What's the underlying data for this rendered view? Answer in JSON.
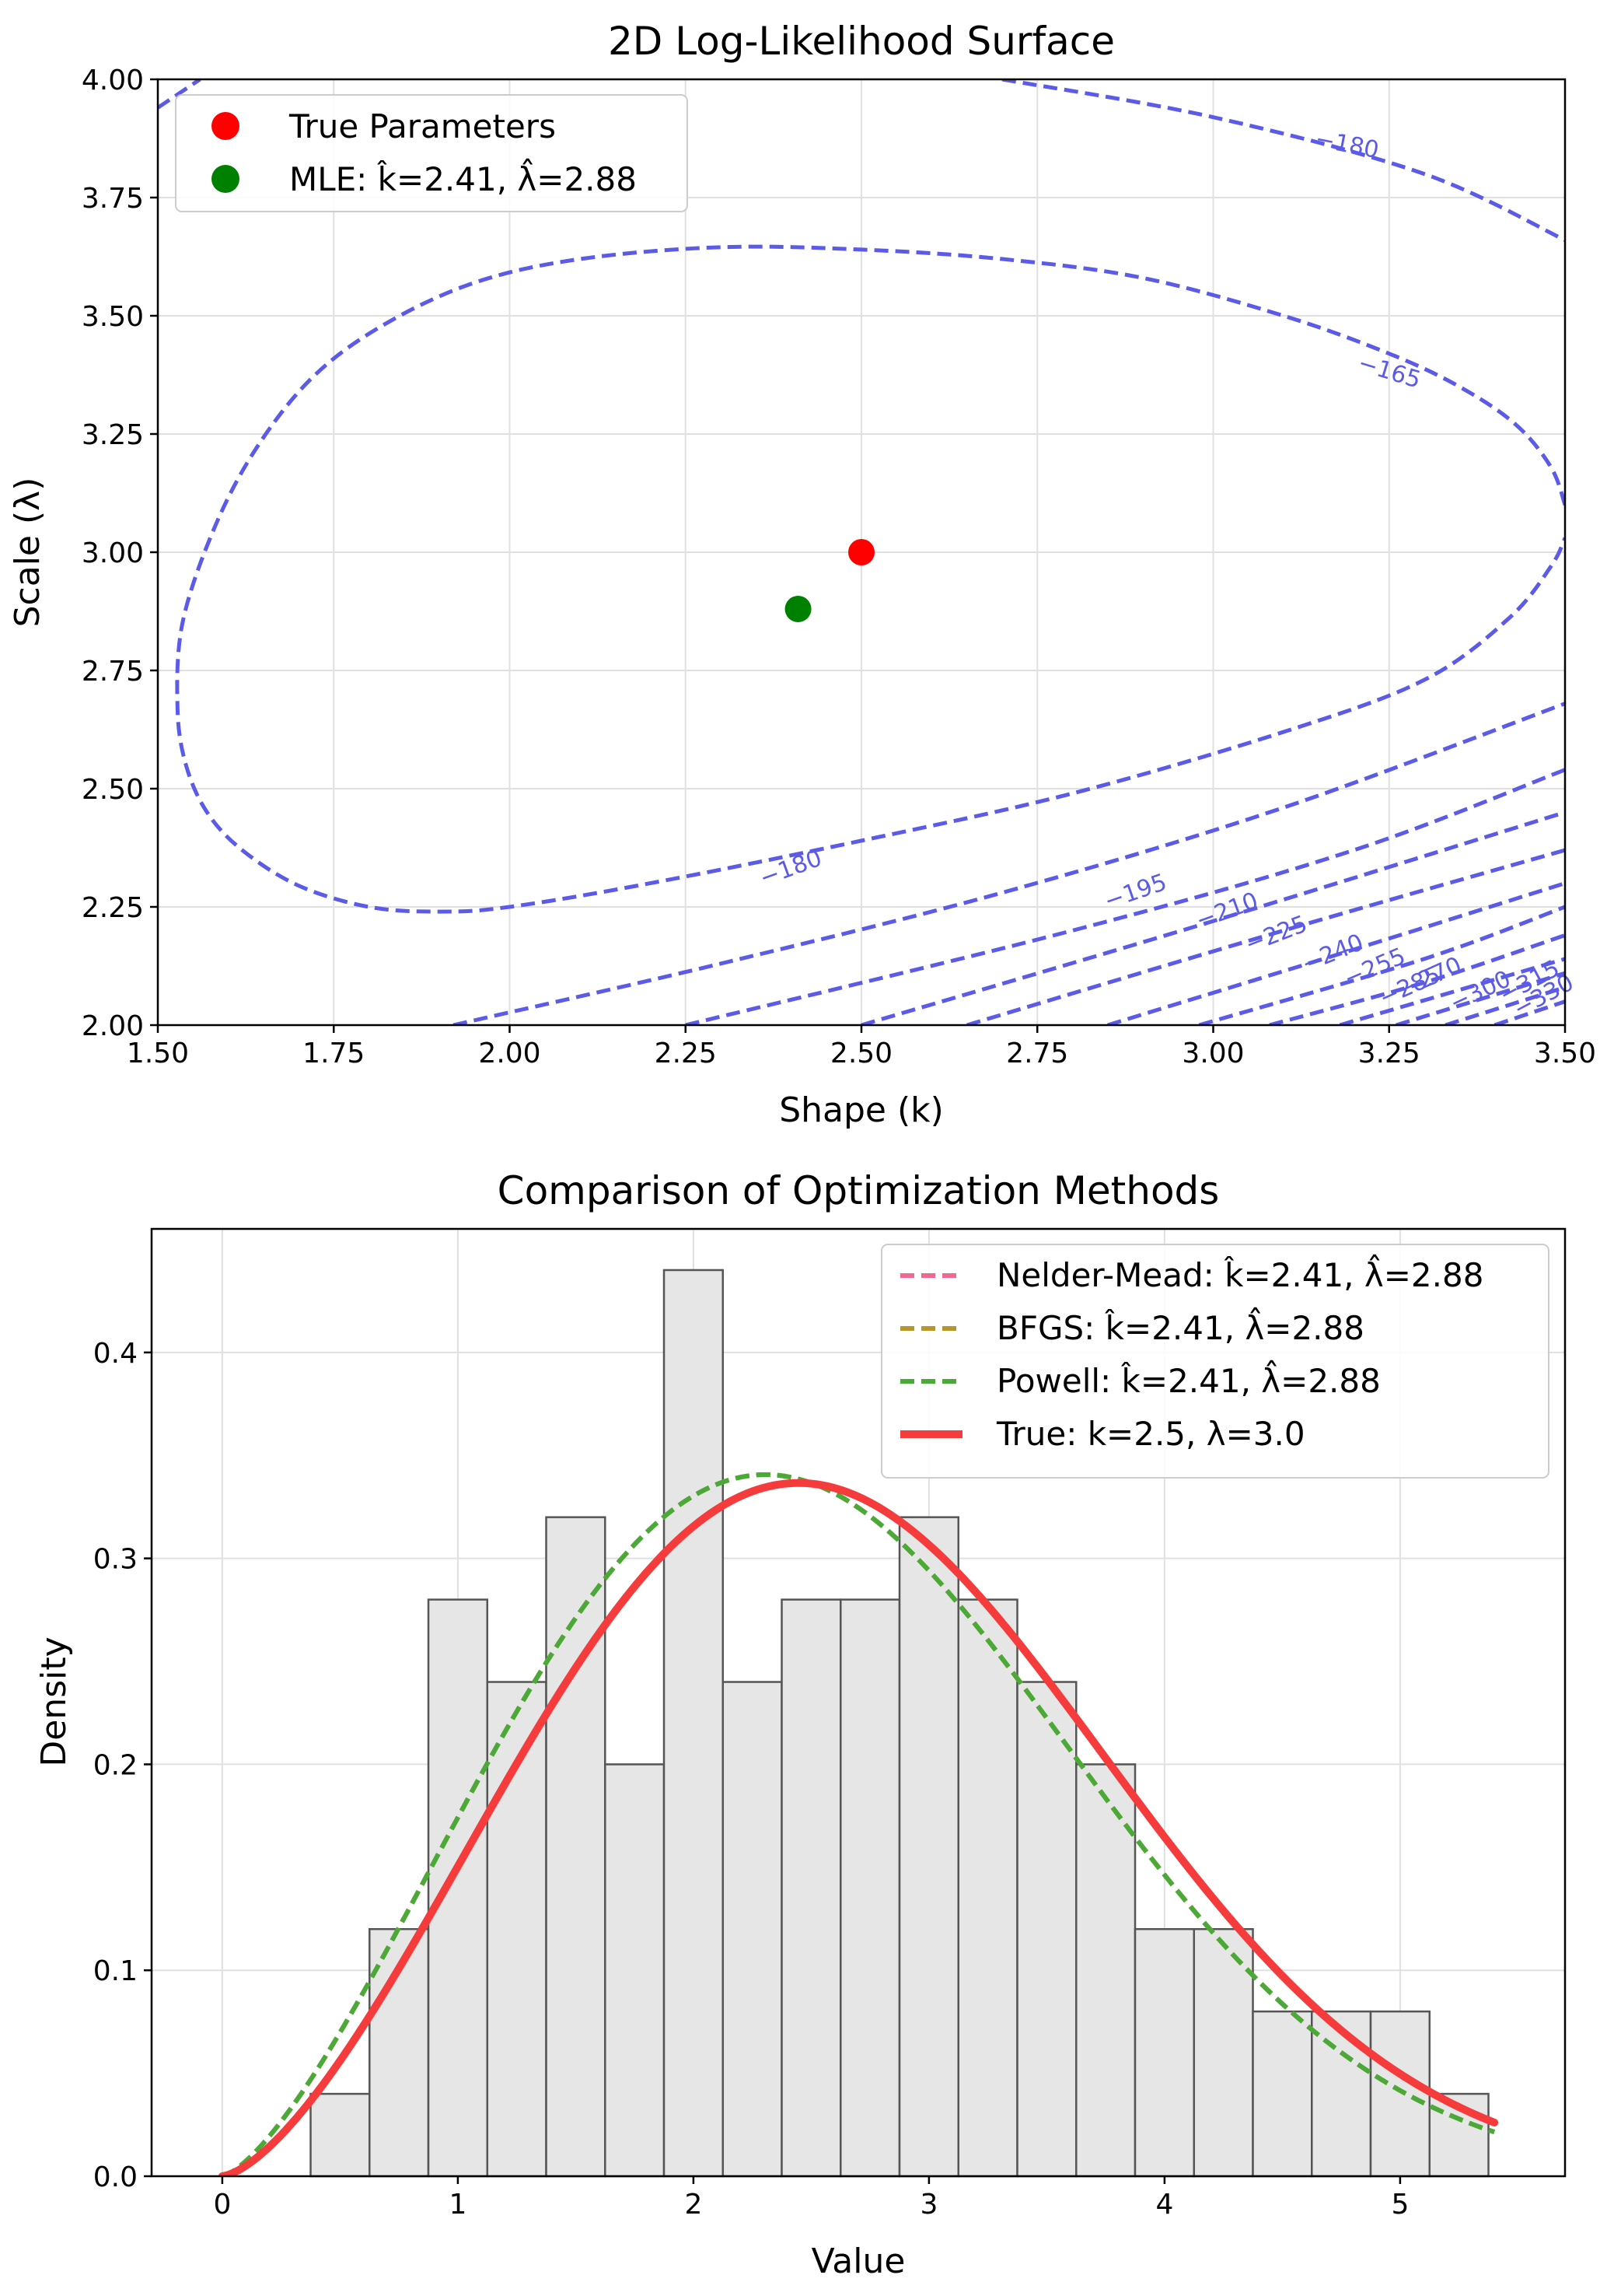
{
  "chart_data": [
    {
      "type": "contour",
      "title": "2D Log-Likelihood Surface",
      "xlabel": "Shape (k)",
      "ylabel": "Scale (λ)",
      "xlim": [
        1.5,
        3.5
      ],
      "ylim": [
        2.0,
        4.0
      ],
      "xticks": [
        1.5,
        1.75,
        2.0,
        2.25,
        2.5,
        2.75,
        3.0,
        3.25,
        3.5
      ],
      "xtick_labels": [
        "1.50",
        "1.75",
        "2.00",
        "2.25",
        "2.50",
        "2.75",
        "3.00",
        "3.25",
        "3.50"
      ],
      "yticks": [
        2.0,
        2.25,
        2.5,
        2.75,
        3.0,
        3.25,
        3.5,
        3.75,
        4.0
      ],
      "ytick_labels": [
        "2.00",
        "2.25",
        "2.50",
        "2.75",
        "3.00",
        "3.25",
        "3.50",
        "3.75",
        "4.00"
      ],
      "grid": true,
      "contour_color": "#5b5be8",
      "contours": [
        {
          "level": -165,
          "label": "−165",
          "points": [
            [
              3.5,
              3.1
            ],
            [
              3.48,
              3.18
            ],
            [
              3.43,
              3.27
            ],
            [
              3.35,
              3.35
            ],
            [
              3.25,
              3.42
            ],
            [
              3.1,
              3.5
            ],
            [
              2.9,
              3.58
            ],
            [
              2.7,
              3.62
            ],
            [
              2.5,
              3.64
            ],
            [
              2.3,
              3.645
            ],
            [
              2.1,
              3.62
            ],
            [
              1.95,
              3.57
            ],
            [
              1.82,
              3.48
            ],
            [
              1.72,
              3.37
            ],
            [
              1.64,
              3.22
            ],
            [
              1.58,
              3.05
            ],
            [
              1.535,
              2.85
            ],
            [
              1.528,
              2.67
            ],
            [
              1.54,
              2.55
            ],
            [
              1.57,
              2.45
            ],
            [
              1.62,
              2.37
            ],
            [
              1.7,
              2.295
            ],
            [
              1.8,
              2.25
            ],
            [
              1.9,
              2.24
            ],
            [
              2.0,
              2.25
            ],
            [
              2.2,
              2.3
            ],
            [
              2.5,
              2.39
            ],
            [
              2.8,
              2.49
            ],
            [
              3.1,
              2.62
            ],
            [
              3.3,
              2.73
            ],
            [
              3.42,
              2.86
            ],
            [
              3.48,
              2.97
            ],
            [
              3.5,
              3.03
            ]
          ]
        },
        {
          "level": -180,
          "label": "−180",
          "points": [
            [
              1.5,
              3.94
            ],
            [
              1.56,
              4.0
            ]
          ]
        },
        {
          "level": -180,
          "label": "−180",
          "points": [
            [
              2.7,
              4.0
            ],
            [
              3.0,
              3.92
            ],
            [
              3.3,
              3.8
            ],
            [
              3.5,
              3.66
            ]
          ]
        },
        {
          "level": -180,
          "label": "−180",
          "points": [
            [
              1.92,
              2.0
            ],
            [
              2.3,
              2.13
            ],
            [
              2.7,
              2.28
            ],
            [
              3.1,
              2.46
            ],
            [
              3.5,
              2.68
            ]
          ]
        },
        {
          "level": -195,
          "label": "−195",
          "points": [
            [
              2.25,
              2.0
            ],
            [
              2.8,
              2.2
            ],
            [
              3.2,
              2.37
            ],
            [
              3.5,
              2.54
            ]
          ]
        },
        {
          "level": -210,
          "label": "−210",
          "points": [
            [
              2.5,
              2.0
            ],
            [
              3.0,
              2.22
            ],
            [
              3.5,
              2.45
            ]
          ]
        },
        {
          "level": -225,
          "label": "−225",
          "points": [
            [
              2.65,
              2.0
            ],
            [
              3.1,
              2.2
            ],
            [
              3.5,
              2.37
            ]
          ]
        },
        {
          "level": -240,
          "label": "−240",
          "points": [
            [
              2.85,
              2.0
            ],
            [
              3.2,
              2.16
            ],
            [
              3.5,
              2.3
            ]
          ]
        },
        {
          "level": -255,
          "label": "−255",
          "points": [
            [
              2.98,
              2.0
            ],
            [
              3.3,
              2.14
            ],
            [
              3.5,
              2.25
            ]
          ]
        },
        {
          "level": -270,
          "label": "−270",
          "points": [
            [
              3.08,
              2.0
            ],
            [
              3.3,
              2.09
            ],
            [
              3.5,
              2.19
            ]
          ]
        },
        {
          "level": -285,
          "label": "−285",
          "points": [
            [
              3.18,
              2.0
            ],
            [
              3.5,
              2.14
            ]
          ]
        },
        {
          "level": -300,
          "label": "−300",
          "points": [
            [
              3.26,
              2.0
            ],
            [
              3.5,
              2.11
            ]
          ]
        },
        {
          "level": -315,
          "label": "−315",
          "points": [
            [
              3.33,
              2.0
            ],
            [
              3.5,
              2.08
            ]
          ]
        },
        {
          "level": -330,
          "label": "−330",
          "points": [
            [
              3.4,
              2.0
            ],
            [
              3.5,
              2.05
            ]
          ]
        }
      ],
      "contour_labels": [
        {
          "text": "−180",
          "k": 3.19,
          "lam": 3.86,
          "angle": 11
        },
        {
          "text": "−165",
          "k": 3.25,
          "lam": 3.38,
          "angle": 17
        },
        {
          "text": "−180",
          "k": 2.4,
          "lam": 2.33,
          "angle": -20
        },
        {
          "text": "−195",
          "k": 2.89,
          "lam": 2.28,
          "angle": -19
        },
        {
          "text": "−210",
          "k": 3.02,
          "lam": 2.24,
          "angle": -20
        },
        {
          "text": "−225",
          "k": 3.09,
          "lam": 2.19,
          "angle": -21
        },
        {
          "text": "−240",
          "k": 3.17,
          "lam": 2.15,
          "angle": -22
        },
        {
          "text": "−255",
          "k": 3.23,
          "lam": 2.12,
          "angle": -23
        },
        {
          "text": "−270",
          "k": 3.31,
          "lam": 2.1,
          "angle": -24
        },
        {
          "text": "−285",
          "k": 3.28,
          "lam": 2.08,
          "angle": -24
        },
        {
          "text": "−300",
          "k": 3.38,
          "lam": 2.07,
          "angle": -25
        },
        {
          "text": "−315",
          "k": 3.45,
          "lam": 2.09,
          "angle": -28
        },
        {
          "text": "−330",
          "k": 3.47,
          "lam": 2.06,
          "angle": -28
        }
      ],
      "markers": [
        {
          "name": "True Parameters",
          "k": 2.5,
          "lam": 3.0,
          "color": "#ff0000"
        },
        {
          "name": "MLE: k̂=2.41, λ̂=2.88",
          "k": 2.41,
          "lam": 2.88,
          "color": "#008000"
        }
      ],
      "legend": {
        "placement": "upper-left",
        "entries": [
          "True Parameters",
          "MLE: k̂=2.41, λ̂=2.88"
        ]
      }
    },
    {
      "type": "histogram",
      "title": "Comparison of Optimization Methods",
      "xlabel": "Value",
      "ylabel": "Density",
      "xlim": [
        -0.3,
        5.7
      ],
      "ylim": [
        0.0,
        0.46
      ],
      "xticks": [
        0,
        1,
        2,
        3,
        4,
        5
      ],
      "xtick_labels": [
        "0",
        "1",
        "2",
        "3",
        "4",
        "5"
      ],
      "yticks": [
        0.0,
        0.1,
        0.2,
        0.3,
        0.4
      ],
      "ytick_labels": [
        "0.0",
        "0.1",
        "0.2",
        "0.3",
        "0.4"
      ],
      "grid": true,
      "hist_bin_start": 0.375,
      "hist_bin_width": 0.25,
      "hist_values": [
        0.04,
        0.12,
        0.28,
        0.24,
        0.32,
        0.2,
        0.44,
        0.24,
        0.28,
        0.28,
        0.32,
        0.28,
        0.24,
        0.2,
        0.12,
        0.12,
        0.08,
        0.08,
        0.08,
        0.04
      ],
      "hist_fill": "#e6e6e6",
      "hist_edge": "#555555",
      "curve_x_range": [
        0,
        5.4
      ],
      "series": [
        {
          "name": "Nelder-Mead: k̂=2.41, λ̂=2.88",
          "k": 2.41,
          "lam": 2.88,
          "color": "#f06890",
          "style": "dashed",
          "width": 6
        },
        {
          "name": "BFGS: k̂=2.41, λ̂=2.88",
          "k": 2.41,
          "lam": 2.88,
          "color": "#b8962a",
          "style": "dashed",
          "width": 6
        },
        {
          "name": "Powell: k̂=2.41, λ̂=2.88",
          "k": 2.41,
          "lam": 2.88,
          "color": "#4aaa38",
          "style": "dashed",
          "width": 6
        },
        {
          "name": "True: k=2.5, λ=3.0",
          "k": 2.5,
          "lam": 3.0,
          "color": "#f53b3b",
          "style": "solid",
          "width": 10
        }
      ],
      "legend": {
        "placement": "upper-right"
      }
    }
  ]
}
